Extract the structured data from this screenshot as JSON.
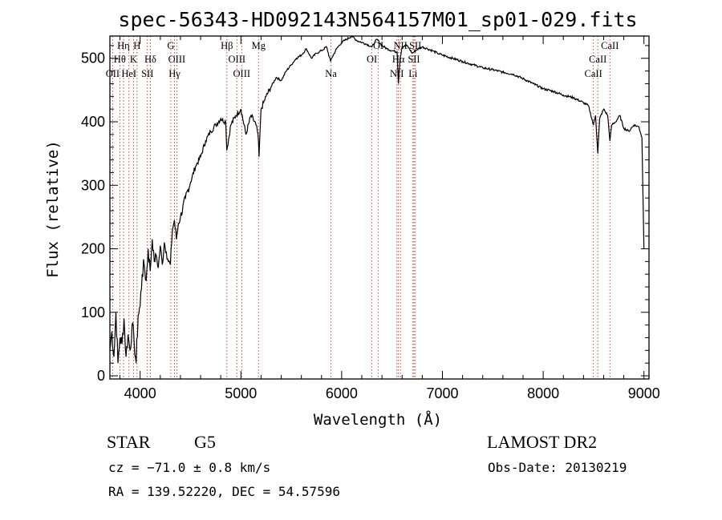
{
  "chart_data": {
    "type": "line",
    "title": "spec-56343-HD092143N564157M01_sp01-029.fits",
    "xlabel": "Wavelength (Å)",
    "ylabel": "Flux (relative)",
    "xlim": [
      3700,
      9050
    ],
    "ylim": [
      -5,
      535
    ],
    "xticks": [
      4000,
      5000,
      6000,
      7000,
      8000,
      9000
    ],
    "yticks": [
      0,
      100,
      200,
      300,
      400,
      500
    ],
    "grid": false,
    "series": [
      {
        "x": [
          3700,
          3720,
          3740,
          3760,
          3780,
          3800,
          3820,
          3840,
          3860,
          3880,
          3900,
          3920,
          3940,
          3960,
          3980,
          4000,
          4020,
          4040,
          4060,
          4080,
          4100,
          4120,
          4140,
          4160,
          4180,
          4200,
          4220,
          4240,
          4260,
          4280,
          4300,
          4320,
          4340,
          4360,
          4380,
          4400,
          4450,
          4500,
          4550,
          4600,
          4650,
          4700,
          4750,
          4800,
          4850,
          4860,
          4900,
          4950,
          5000,
          5050,
          5100,
          5150,
          5170,
          5180,
          5200,
          5250,
          5300,
          5350,
          5400,
          5450,
          5500,
          5550,
          5600,
          5650,
          5700,
          5750,
          5800,
          5850,
          5890,
          5900,
          5950,
          6000,
          6050,
          6100,
          6150,
          6200,
          6250,
          6300,
          6350,
          6400,
          6450,
          6500,
          6550,
          6563,
          6580,
          6600,
          6650,
          6700,
          6750,
          6800,
          6850,
          6900,
          6950,
          7000,
          7100,
          7200,
          7300,
          7400,
          7500,
          7600,
          7700,
          7800,
          7900,
          8000,
          8100,
          8200,
          8300,
          8400,
          8450,
          8498,
          8520,
          8542,
          8560,
          8600,
          8640,
          8662,
          8680,
          8720,
          8760,
          8800,
          8850,
          8900,
          8950,
          8980,
          9000
        ],
        "values": [
          40,
          70,
          30,
          100,
          20,
          60,
          50,
          90,
          30,
          65,
          40,
          80,
          55,
          20,
          95,
          110,
          160,
          175,
          150,
          200,
          165,
          215,
          180,
          190,
          170,
          205,
          175,
          210,
          195,
          180,
          175,
          230,
          245,
          215,
          240,
          250,
          280,
          305,
          330,
          345,
          370,
          385,
          395,
          405,
          400,
          355,
          395,
          410,
          420,
          380,
          410,
          395,
          380,
          345,
          420,
          440,
          455,
          470,
          465,
          480,
          490,
          500,
          505,
          515,
          500,
          508,
          512,
          518,
          495,
          500,
          515,
          525,
          530,
          535,
          528,
          525,
          522,
          518,
          530,
          520,
          515,
          512,
          510,
          460,
          500,
          518,
          520,
          508,
          514,
          518,
          515,
          512,
          508,
          505,
          500,
          495,
          490,
          485,
          482,
          478,
          475,
          468,
          460,
          452,
          448,
          442,
          438,
          430,
          425,
          395,
          410,
          350,
          405,
          420,
          410,
          370,
          395,
          400,
          410,
          390,
          385,
          395,
          392,
          375,
          200
        ]
      }
    ],
    "line_markers": [
      {
        "label": "OII",
        "x": 3727,
        "row": 3
      },
      {
        "label": "Hθ",
        "x": 3798,
        "row": 2
      },
      {
        "label": "Hη",
        "x": 3835,
        "row": 1
      },
      {
        "label": "HeI",
        "x": 3889,
        "row": 3
      },
      {
        "label": "K",
        "x": 3934,
        "row": 2
      },
      {
        "label": "H",
        "x": 3969,
        "row": 1
      },
      {
        "label": "SII",
        "x": 4072,
        "row": 3
      },
      {
        "label": "Hδ",
        "x": 4102,
        "row": 2
      },
      {
        "label": "G",
        "x": 4304,
        "row": 1
      },
      {
        "label": "OIII",
        "x": 4364,
        "row": 2
      },
      {
        "label": "Hγ",
        "x": 4341,
        "row": 3
      },
      {
        "label": "Hβ",
        "x": 4861,
        "row": 1
      },
      {
        "label": "OIII",
        "x": 4960,
        "row": 2
      },
      {
        "label": "OIII",
        "x": 5008,
        "row": 3
      },
      {
        "label": "Mg",
        "x": 5175,
        "row": 1
      },
      {
        "label": "Na",
        "x": 5894,
        "row": 3
      },
      {
        "label": "OI",
        "x": 6300,
        "row": 2
      },
      {
        "label": "OI",
        "x": 6364,
        "row": 1
      },
      {
        "label": "NII",
        "x": 6548,
        "row": 3
      },
      {
        "label": "Hα",
        "x": 6563,
        "row": 2
      },
      {
        "label": "NII",
        "x": 6583,
        "row": 1
      },
      {
        "label": "Li",
        "x": 6708,
        "row": 3
      },
      {
        "label": "SII",
        "x": 6717,
        "row": 2
      },
      {
        "label": "SII",
        "x": 6731,
        "row": 1
      },
      {
        "label": "CaII",
        "x": 8498,
        "row": 3
      },
      {
        "label": "CaII",
        "x": 8542,
        "row": 2
      },
      {
        "label": "CaII",
        "x": 8662,
        "row": 1
      }
    ]
  },
  "info": {
    "class": "STAR",
    "subclass": "G5",
    "survey": "LAMOST DR2",
    "cz": "cz = −71.0 ± 0.8 km/s",
    "obs_date": "Obs-Date: 20130219",
    "coords": "RA = 139.52220, DEC =  54.57596"
  }
}
